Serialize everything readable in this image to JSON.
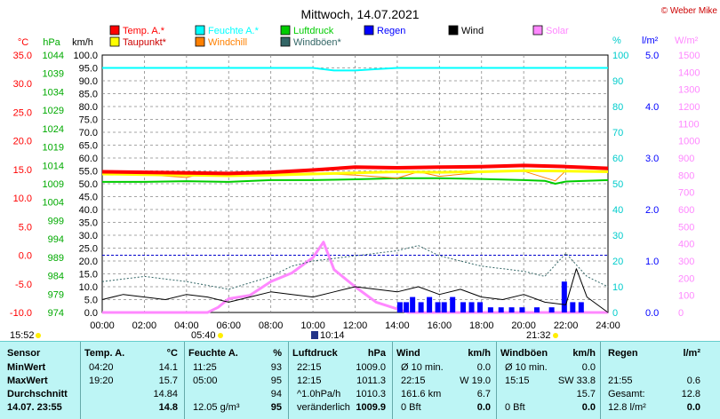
{
  "title": "Mittwoch, 14.07.2021",
  "credit": "© Weber Mike",
  "colors": {
    "temp": "#ff0000",
    "humidity": "#00ffff",
    "pressure": "#00cc00",
    "rain": "#0000ff",
    "wind": "#000000",
    "solar": "#ff88ff",
    "dewpoint": "#ffff00",
    "windchill": "#ff8000",
    "gust": "#336666",
    "axis_temp": "#ff0000",
    "axis_hpa": "#00aa00",
    "axis_kmh": "#000000",
    "axis_pct": "#00cccc",
    "axis_rain": "#0000ff",
    "axis_solar": "#ff88ff",
    "grid": "#888888",
    "table_bg": "#bdf5f5"
  },
  "chart_data": {
    "type": "line",
    "title": "Mittwoch, 14.07.2021",
    "x_ticks": [
      "00:00",
      "02:00",
      "04:00",
      "06:00",
      "08:00",
      "10:00",
      "12:00",
      "14:00",
      "16:00",
      "18:00",
      "20:00",
      "22:00",
      "24:00"
    ],
    "axes": {
      "temp": {
        "unit": "°C",
        "min": -10,
        "max": 35,
        "ticks": [
          "35.0",
          "30.0",
          "25.0",
          "20.0",
          "15.0",
          "10.0",
          "5.0",
          "0.0",
          "-5.0",
          "-10.0"
        ]
      },
      "pressure": {
        "unit": "hPa",
        "min": 974,
        "max": 1044,
        "ticks": [
          "1044",
          "1039",
          "1034",
          "1029",
          "1024",
          "1019",
          "1014",
          "1009",
          "1004",
          "999",
          "994",
          "989",
          "984",
          "979",
          "974"
        ]
      },
      "wind": {
        "unit": "km/h",
        "min": 0,
        "max": 100,
        "ticks": [
          "100.0",
          "95.0",
          "90.0",
          "85.0",
          "80.0",
          "75.0",
          "70.0",
          "65.0",
          "60.0",
          "55.0",
          "50.0",
          "45.0",
          "40.0",
          "35.0",
          "30.0",
          "25.0",
          "20.0",
          "15.0",
          "10.0",
          "5.0",
          "0.0"
        ]
      },
      "humidity": {
        "unit": "%",
        "min": 0,
        "max": 100,
        "ticks": [
          "100",
          "90",
          "80",
          "70",
          "60",
          "50",
          "40",
          "30",
          "20",
          "10",
          "0"
        ]
      },
      "rain": {
        "unit": "l/m²",
        "min": 0,
        "max": 5,
        "ticks": [
          "5.0",
          "4.0",
          "3.0",
          "2.0",
          "1.0",
          "0.0"
        ]
      },
      "solar": {
        "unit": "W/m²",
        "min": 0,
        "max": 1500,
        "ticks": [
          "1500",
          "1400",
          "1300",
          "1200",
          "1100",
          "1000",
          "900",
          "800",
          "700",
          "600",
          "500",
          "400",
          "300",
          "200",
          "100",
          "0"
        ]
      }
    },
    "legend": [
      {
        "name": "Temp. A.*",
        "color": "#ff0000"
      },
      {
        "name": "Feuchte A.*",
        "color": "#00ffff"
      },
      {
        "name": "Luftdruck",
        "color": "#00cc00"
      },
      {
        "name": "Regen",
        "color": "#0000ff"
      },
      {
        "name": "Wind",
        "color": "#000000"
      },
      {
        "name": "Solar",
        "color": "#ff88ff"
      },
      {
        "name": "Taupunkt*",
        "color": "#ffff00"
      },
      {
        "name": "Windchill",
        "color": "#ff8000"
      },
      {
        "name": "Windböen*",
        "color": "#336666"
      }
    ],
    "series": [
      {
        "name": "Temp. A.*",
        "axis": "temp",
        "x": [
          0,
          2,
          4,
          6,
          8,
          10,
          12,
          14,
          16,
          18,
          20,
          22,
          24
        ],
        "values": [
          14.6,
          14.5,
          14.4,
          14.3,
          14.5,
          14.9,
          15.4,
          15.3,
          15.4,
          15.5,
          15.7,
          15.5,
          15.2
        ]
      },
      {
        "name": "Feuchte A.*",
        "axis": "humidity",
        "x": [
          0,
          2,
          4,
          6,
          8,
          10,
          11,
          12,
          13,
          14,
          16,
          18,
          20,
          22,
          24
        ],
        "values": [
          95,
          95,
          95,
          95,
          95,
          95,
          94,
          94,
          94.5,
          95,
          95,
          95,
          95,
          95,
          95
        ]
      },
      {
        "name": "Luftdruck",
        "axis": "pressure",
        "x": [
          0,
          2,
          4,
          6,
          8,
          10,
          12,
          14,
          16,
          18,
          20,
          21,
          21.5,
          22,
          24
        ],
        "values": [
          1009.5,
          1009.5,
          1009.7,
          1009.5,
          1010,
          1010,
          1010.2,
          1010.5,
          1010.5,
          1010.3,
          1010,
          1009.8,
          1009,
          1009.6,
          1010
        ]
      },
      {
        "name": "Taupunkt*",
        "axis": "temp",
        "x": [
          0,
          2,
          4,
          6,
          8,
          10,
          12,
          14,
          16,
          18,
          20,
          22,
          24
        ],
        "values": [
          14.2,
          14.1,
          14.0,
          13.9,
          14.0,
          14.2,
          14.4,
          14.6,
          14.5,
          14.6,
          14.8,
          14.7,
          14.6
        ]
      },
      {
        "name": "Windchill",
        "axis": "temp",
        "x": [
          0,
          2,
          4,
          4.5,
          6,
          8,
          10,
          12,
          14,
          15,
          16,
          18,
          20,
          21.5,
          22,
          24
        ],
        "values": [
          14.2,
          14.1,
          13.6,
          14.0,
          13.9,
          14.2,
          14.4,
          14.0,
          13.5,
          14.6,
          13.8,
          14.5,
          14.7,
          13.0,
          14.8,
          14.8
        ]
      },
      {
        "name": "Windböen*",
        "axis": "wind",
        "x": [
          0,
          2,
          4,
          6,
          8,
          9,
          10,
          12,
          14,
          15,
          16,
          18,
          20,
          21,
          22,
          23,
          24
        ],
        "values": [
          12,
          14,
          12,
          9,
          14,
          18,
          20,
          22,
          24,
          26,
          22,
          18,
          16,
          14,
          23,
          14,
          10
        ]
      },
      {
        "name": "Wind",
        "axis": "wind",
        "x": [
          0,
          1,
          2,
          3,
          4,
          5,
          6,
          7,
          8,
          9,
          10,
          11,
          12,
          13,
          14,
          15,
          16,
          17,
          18,
          19,
          20,
          21,
          22,
          22.5,
          23,
          24
        ],
        "values": [
          5,
          7,
          6,
          5,
          7,
          6,
          4,
          6,
          8,
          7,
          6,
          8,
          10,
          9,
          8,
          10,
          7,
          9,
          6,
          5,
          7,
          4,
          3,
          17,
          6,
          0
        ]
      },
      {
        "name": "Solar",
        "axis": "solar",
        "x": [
          0,
          5,
          5.5,
          6,
          7,
          8,
          9,
          10,
          10.5,
          11,
          12,
          13,
          14,
          14.5,
          24
        ],
        "values": [
          0,
          0,
          30,
          80,
          100,
          180,
          230,
          320,
          410,
          250,
          150,
          60,
          20,
          0,
          0
        ]
      }
    ]
  },
  "status_row": {
    "sunrise": "05:40",
    "sunset": "21:32",
    "moonrise": "10:14",
    "moonset": "15:52"
  },
  "table": {
    "headers": {
      "sensor": "Sensor",
      "temp": "Temp. A.",
      "temp_unit": "°C",
      "hum": "Feuchte A.",
      "hum_unit": "%",
      "pres": "Luftdruck",
      "pres_unit": "hPa",
      "wind": "Wind",
      "wind_unit": "km/h",
      "gust": "Windböen",
      "gust_unit": "km/h",
      "rain": "Regen",
      "rain_unit": "l/m²"
    },
    "rows": [
      {
        "label": "MinWert",
        "t_time": "04:20",
        "t_val": "14.1",
        "h_time": "11:25",
        "h_val": "93",
        "p_time": "22:15",
        "p_val": "1009.0",
        "w_time": "Ø 10 min.",
        "w_val": "0.0",
        "g_time": "Ø 10 min.",
        "g_val": "0.0",
        "r_time": "",
        "r_val": ""
      },
      {
        "label": "MaxWert",
        "t_time": "19:20",
        "t_val": "15.7",
        "h_time": "05:00",
        "h_val": "95",
        "p_time": "12:15",
        "p_val": "1011.3",
        "w_time": "22:15",
        "w_val": "W 19.0",
        "g_time": "15:15",
        "g_val": "SW 33.8",
        "r_time": "21:55",
        "r_val": "0.6"
      },
      {
        "label": "Durchschnitt",
        "t_time": "",
        "t_val": "14.84",
        "h_time": "",
        "h_val": "94",
        "p_time": "^1.0hPa/h",
        "p_val": "1010.3",
        "w_time": "161.6 km",
        "w_val": "6.7",
        "g_time": "",
        "g_val": "15.7",
        "r_time": "Gesamt:",
        "r_val": "12.8"
      },
      {
        "label": "14.07. 23:55",
        "t_time": "",
        "t_val": "14.8",
        "h_time": "12.05 g/m³",
        "h_val": "95",
        "p_time": "veränderlich",
        "p_val": "1009.9",
        "w_time": "0 Bft",
        "w_val": "0.0",
        "g_time": "0 Bft",
        "g_val": "0.0",
        "r_time": "12.8 l/m²",
        "r_val": "0.0"
      }
    ]
  }
}
